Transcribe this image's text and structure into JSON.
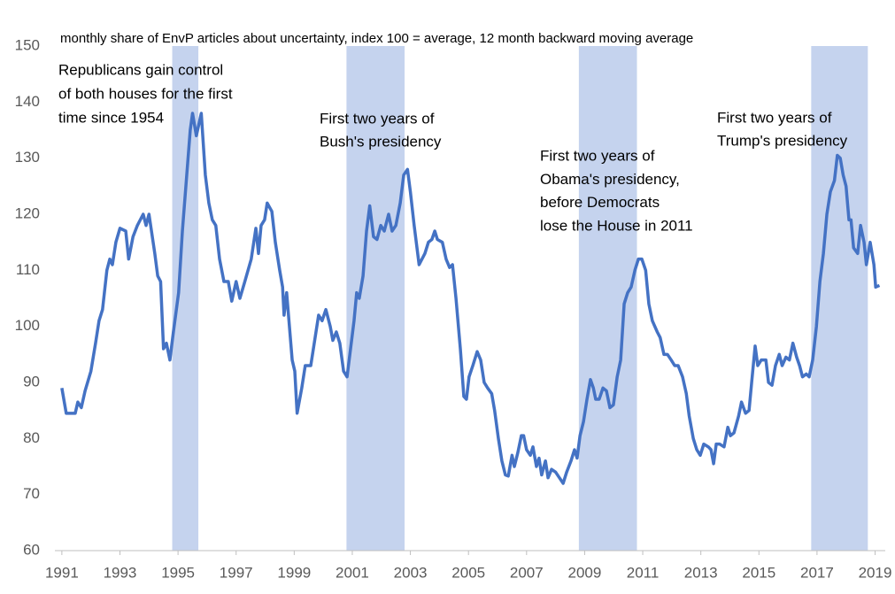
{
  "chart_data": {
    "type": "line",
    "title": "monthly share of EnvP articles about uncertainty, index 100 = average, 12 month backward moving average",
    "x": [
      1991.0,
      1991.15,
      1991.46,
      1991.55,
      1991.67,
      1991.8,
      1992.0,
      1992.16,
      1992.28,
      1992.4,
      1992.55,
      1992.65,
      1992.74,
      1992.86,
      1993.0,
      1993.2,
      1993.3,
      1993.45,
      1993.6,
      1993.8,
      1993.9,
      1994.0,
      1994.2,
      1994.3,
      1994.4,
      1994.5,
      1994.6,
      1994.72,
      1994.84,
      1995.02,
      1995.15,
      1995.27,
      1995.42,
      1995.5,
      1995.63,
      1995.8,
      1995.94,
      1996.06,
      1996.18,
      1996.3,
      1996.43,
      1996.58,
      1996.73,
      1996.85,
      1997.0,
      1997.13,
      1997.3,
      1997.52,
      1997.68,
      1997.77,
      1997.86,
      1997.98,
      1998.07,
      1998.23,
      1998.35,
      1998.5,
      1998.6,
      1998.65,
      1998.74,
      1998.93,
      1999.02,
      1999.1,
      1999.26,
      1999.38,
      1999.57,
      1999.72,
      1999.84,
      1999.96,
      2000.09,
      2000.24,
      2000.33,
      2000.45,
      2000.57,
      2000.7,
      2000.82,
      2000.94,
      2001.06,
      2001.15,
      2001.24,
      2001.37,
      2001.49,
      2001.6,
      2001.73,
      2001.85,
      2001.98,
      2002.1,
      2002.25,
      2002.37,
      2002.5,
      2002.65,
      2002.77,
      2002.9,
      2003.0,
      2003.13,
      2003.3,
      2003.5,
      2003.62,
      2003.74,
      2003.84,
      2003.93,
      2004.1,
      2004.23,
      2004.35,
      2004.45,
      2004.57,
      2004.72,
      2004.84,
      2004.93,
      2005.02,
      2005.15,
      2005.3,
      2005.42,
      2005.54,
      2005.66,
      2005.8,
      2005.9,
      2006.03,
      2006.15,
      2006.27,
      2006.37,
      2006.5,
      2006.58,
      2006.7,
      2006.82,
      2006.9,
      2007.0,
      2007.13,
      2007.22,
      2007.34,
      2007.43,
      2007.52,
      2007.65,
      2007.74,
      2007.86,
      2008.0,
      2008.13,
      2008.26,
      2008.38,
      2008.53,
      2008.65,
      2008.74,
      2008.84,
      2008.96,
      2009.08,
      2009.2,
      2009.3,
      2009.38,
      2009.5,
      2009.63,
      2009.75,
      2009.87,
      2009.99,
      2010.12,
      2010.24,
      2010.36,
      2010.48,
      2010.6,
      2010.73,
      2010.85,
      2010.97,
      2011.1,
      2011.21,
      2011.33,
      2011.5,
      2011.6,
      2011.73,
      2011.85,
      2011.98,
      2012.1,
      2012.22,
      2012.37,
      2012.5,
      2012.6,
      2012.74,
      2012.86,
      2012.98,
      2013.1,
      2013.26,
      2013.35,
      2013.44,
      2013.53,
      2013.65,
      2013.8,
      2013.93,
      2014.02,
      2014.14,
      2014.3,
      2014.4,
      2014.54,
      2014.66,
      2014.75,
      2014.87,
      2014.96,
      2015.08,
      2015.24,
      2015.33,
      2015.45,
      2015.57,
      2015.7,
      2015.8,
      2015.93,
      2016.05,
      2016.17,
      2016.3,
      2016.4,
      2016.5,
      2016.63,
      2016.73,
      2016.85,
      2016.98,
      2017.1,
      2017.22,
      2017.34,
      2017.46,
      2017.6,
      2017.7,
      2017.8,
      2017.9,
      2018.0,
      2018.1,
      2018.17,
      2018.26,
      2018.4,
      2018.5,
      2018.62,
      2018.7,
      2018.83,
      2018.96,
      2019.02,
      2019.15
    ],
    "series": [
      {
        "color": "#4472c4",
        "values": [
          89,
          84.5,
          84.5,
          86.5,
          85.5,
          88.5,
          92,
          97,
          101,
          103,
          110,
          112,
          111,
          115,
          117.5,
          117,
          112,
          116,
          118,
          120,
          118,
          120,
          113,
          109,
          108,
          96,
          97,
          94,
          99,
          106,
          117,
          125,
          135,
          138,
          134,
          138,
          127,
          122,
          119,
          118,
          112,
          108,
          108,
          104.5,
          108,
          105,
          108,
          112,
          117.5,
          113,
          118,
          119,
          122,
          120.5,
          115,
          110,
          107,
          102,
          106,
          94,
          92,
          84.5,
          89,
          93,
          93,
          98,
          102,
          101,
          103,
          100,
          97.5,
          99,
          97,
          92,
          91,
          96,
          101,
          106,
          105,
          109,
          117,
          121.5,
          116,
          115.5,
          118,
          117,
          120,
          117,
          118,
          122,
          127,
          128,
          124,
          118,
          111,
          113,
          115,
          115.5,
          117,
          115.5,
          115,
          112,
          110.5,
          111,
          105,
          96,
          87.5,
          87,
          91,
          93,
          95.5,
          94,
          90,
          89,
          88,
          85,
          80,
          76,
          73.5,
          73.3,
          77,
          75,
          77.5,
          80.5,
          80.5,
          78,
          77,
          78.5,
          75,
          76.5,
          73.5,
          76,
          73,
          74.5,
          74,
          73,
          72,
          74,
          76,
          78,
          76.5,
          80.5,
          83,
          87,
          90.5,
          89,
          87,
          87,
          89,
          88.5,
          85.5,
          86,
          91,
          94,
          104,
          106,
          107,
          110,
          112,
          112,
          110,
          104,
          101,
          99,
          98,
          95,
          95,
          94,
          93,
          93,
          91,
          88,
          84,
          80,
          78,
          77,
          79,
          78.5,
          78,
          75.5,
          79,
          79,
          78.5,
          82,
          80.5,
          81,
          84,
          86.5,
          84.5,
          85,
          90,
          96.5,
          93,
          94,
          94,
          90,
          89.5,
          93,
          95,
          93,
          94.5,
          94,
          97,
          94.5,
          93,
          91,
          91.5,
          91,
          94,
          100,
          108,
          113,
          120,
          124,
          126,
          130.5,
          130,
          127,
          125,
          119,
          119,
          114,
          113,
          118,
          115,
          111,
          115,
          111,
          107,
          107.3
        ]
      }
    ],
    "shaded_periods": [
      [
        1994.8,
        1995.7
      ],
      [
        2000.8,
        2002.8
      ],
      [
        2008.8,
        2010.8
      ],
      [
        2016.8,
        2018.75
      ]
    ],
    "shade_color": "#c5d3ee",
    "annotations": [
      {
        "lines": [
          "Republicans gain control",
          "of both houses for the first",
          "time since 1954"
        ]
      },
      {
        "lines": [
          "First two years of",
          "Bush's presidency"
        ]
      },
      {
        "lines": [
          "First two years of",
          "Obama's presidency,",
          "before Democrats",
          "lose the House in 2011"
        ]
      },
      {
        "lines": [
          "First two years of",
          "Trump's presidency"
        ]
      }
    ],
    "xlim": [
      1990.76,
      2019.35
    ],
    "ylim": [
      60,
      150
    ],
    "xticks": [
      1991,
      1993,
      1995,
      1997,
      1999,
      2001,
      2003,
      2005,
      2007,
      2009,
      2011,
      2013,
      2015,
      2017,
      2019
    ],
    "yticks": [
      60,
      70,
      80,
      90,
      100,
      110,
      120,
      130,
      140,
      150
    ],
    "grid": false
  }
}
